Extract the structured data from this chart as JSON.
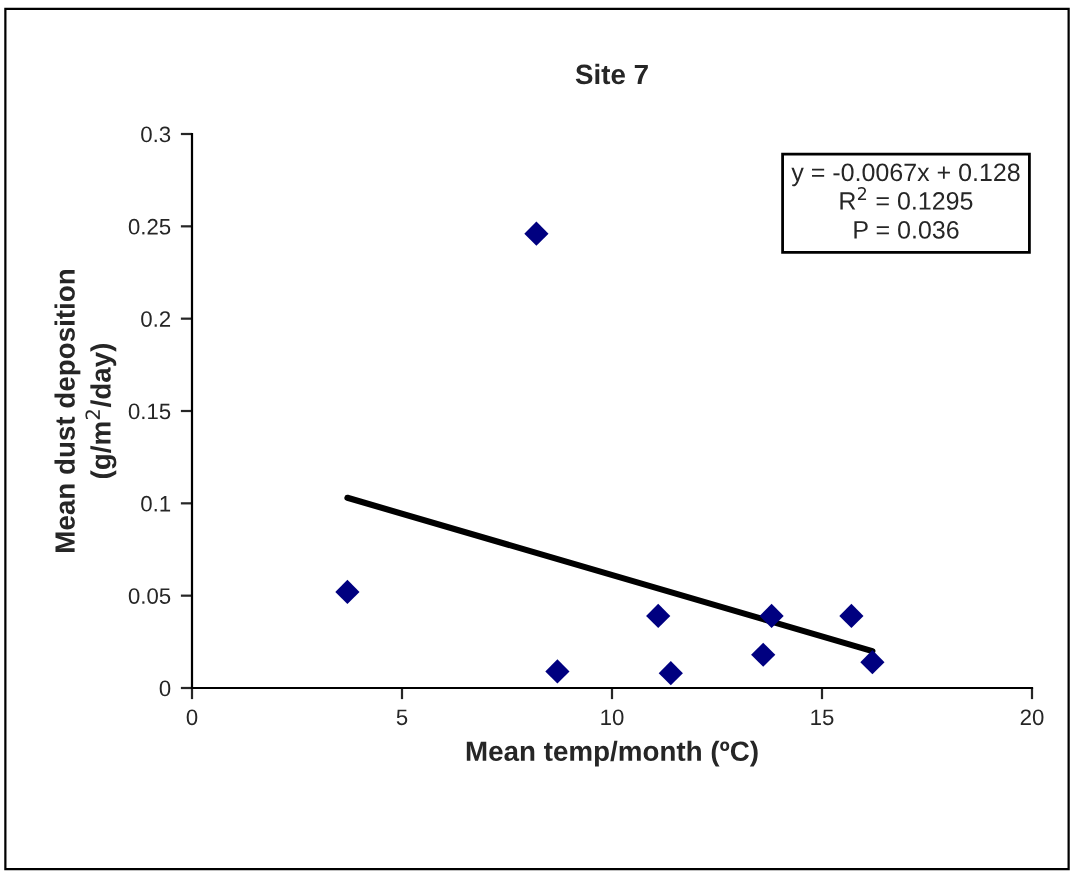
{
  "chart_data": {
    "type": "scatter",
    "title": "Site 7",
    "xlabel": "Mean temp/month (ºC)",
    "ylabel": "Mean dust deposition\n(g/m$^{2}$/day)",
    "x": [
      3.7,
      8.2,
      8.7,
      11.1,
      11.4,
      13.6,
      13.8,
      15.7,
      16.2
    ],
    "series": [
      {
        "color": "#000080",
        "marker": "diamond",
        "values": [
          0.052,
          0.246,
          0.009,
          0.039,
          0.008,
          0.018,
          0.039,
          0.039,
          0.014
        ]
      },
      {
        "type": "line",
        "color": "#000000",
        "marker": "none",
        "line_style": "solid",
        "x": [
          3.7,
          16.2
        ],
        "values": [
          0.103,
          0.02
        ]
      }
    ],
    "annotations": [
      "y = -0.0067x + 0.128\nR$^{2}$ = 0.1295\nP = 0.036"
    ],
    "xlim": [
      0,
      20
    ],
    "xticks": [
      0,
      5,
      10,
      15,
      20
    ],
    "ylim": [
      0,
      0.3
    ],
    "yticks": [
      0,
      0.05,
      0.1,
      0.15,
      0.2,
      0.25,
      0.3
    ],
    "grid": false,
    "legend": false
  }
}
